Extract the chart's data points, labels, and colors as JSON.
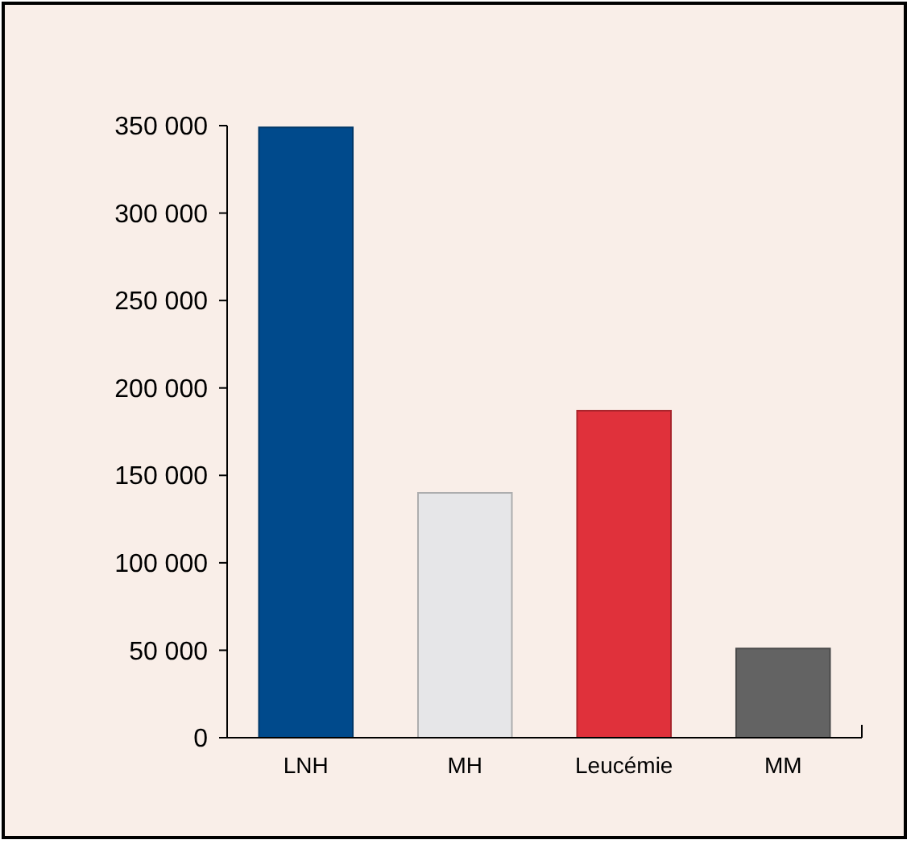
{
  "chart_data": {
    "type": "bar",
    "categories": [
      "LNH",
      "MH",
      "Leucémie",
      "MM"
    ],
    "values": [
      349000,
      140000,
      187000,
      51000
    ],
    "colors": [
      "#004a8c",
      "#e6e6e8",
      "#e0313b",
      "#636363"
    ],
    "ylim": [
      0,
      350000
    ],
    "yticks": [
      {
        "value": 0,
        "label": "0"
      },
      {
        "value": 50000,
        "label": "50 000"
      },
      {
        "value": 100000,
        "label": "100 000"
      },
      {
        "value": 150000,
        "label": "150 000"
      },
      {
        "value": 200000,
        "label": "200 000"
      },
      {
        "value": 250000,
        "label": "250 000"
      },
      {
        "value": 300000,
        "label": "300 000"
      },
      {
        "value": 350000,
        "label": "350 000"
      }
    ],
    "grid": false
  }
}
